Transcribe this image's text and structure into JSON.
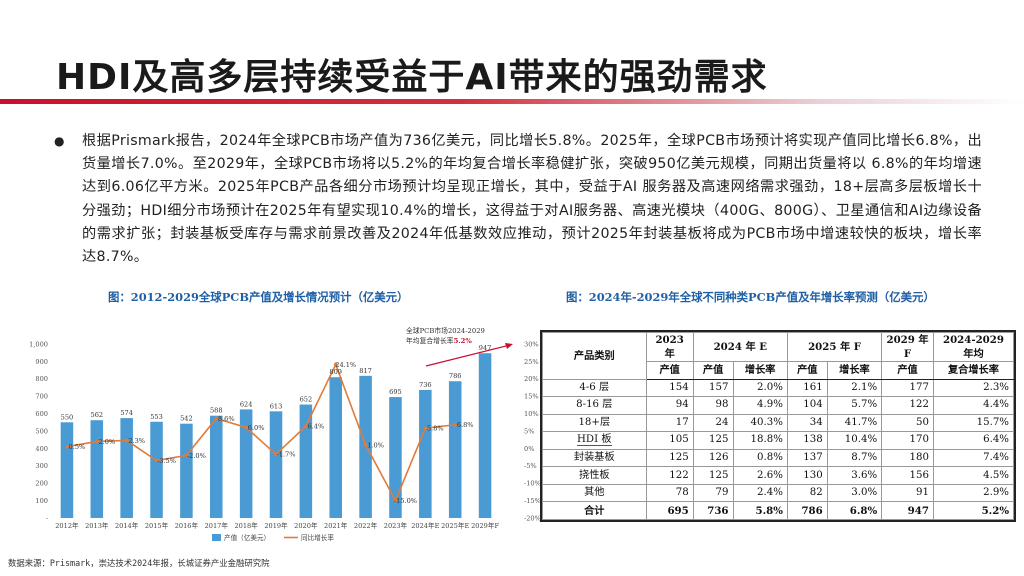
{
  "title": "HDI及高多层持续受益于AI带来的强劲需求",
  "bullet": "根据Prismark报告，2024年全球PCB市场产值为736亿美元，同比增长5.8%。2025年，全球PCB市场预计将实现产值同比增长6.8%，出货量增长7.0%。至2029年，全球PCB市场将以5.2%的年均复合增长率稳健扩张，突破950亿美元规模，同期出货量将以 6.8%的年均增速达到6.06亿平方米。2025年PCB产品各细分市场预计均呈现正增长，其中，受益于AI 服务器及高速网络需求强劲，18+层高多层板增长十分强劲；HDI细分市场预计在2025年有望实现10.4%的增长，这得益于对AI服务器、高速光模块（400G、800G）、卫星通信和AI边缘设备的需求扩张；封装基板受库存与需求前景改善及2024年低基数效应推动，预计2025年封装基板将成为PCB市场中增速较快的板块，增长率达8.7%。",
  "figure_left_caption": "图：2012-2029全球PCB产值及增长情况预计（亿美元）",
  "figure_right_caption": "图：2024年-2029年全球不同种类PCB产值及年增长率预测（亿美元）",
  "chart_data": {
    "type": "bar",
    "categories": [
      "2012年",
      "2013年",
      "2014年",
      "2015年",
      "2016年",
      "2017年",
      "2018年",
      "2019年",
      "2020年",
      "2021年",
      "2022年",
      "2023年",
      "2024年E",
      "2025年E",
      "2029年F"
    ],
    "series": [
      {
        "name": "产值（亿美元）",
        "type": "bar",
        "axis": "left",
        "values": [
          550,
          562,
          574,
          553,
          542,
          588,
          624,
          613,
          652,
          809,
          817,
          695,
          736,
          786,
          947
        ],
        "labels": [
          "550",
          "562",
          "574",
          "553",
          "542",
          "588",
          "624",
          "613",
          "652",
          "809",
          "817",
          "695",
          "736",
          "786",
          "947"
        ]
      },
      {
        "name": "同比增长率",
        "type": "line",
        "axis": "right",
        "values": [
          0.5,
          2.0,
          2.3,
          -3.5,
          -2.0,
          8.6,
          6.0,
          -1.7,
          6.4,
          24.1,
          1.0,
          -15.0,
          5.8,
          6.8,
          null
        ],
        "labels": [
          "0.5%",
          "2.0%",
          "2.3%",
          "-3.5%",
          "-2.0%",
          "8.6%",
          "6.0%",
          "-1.7%",
          "6.4%",
          "24.1%",
          "1.0%",
          "-15.0%",
          "5.8%",
          "6.8%",
          ""
        ]
      }
    ],
    "left_axis": {
      "range": [
        0,
        1000
      ],
      "ticks": [
        "-",
        "100",
        "200",
        "300",
        "400",
        "500",
        "600",
        "700",
        "800",
        "900",
        "1,000"
      ]
    },
    "right_axis": {
      "range": [
        -20,
        30
      ],
      "ticks": [
        "-20%",
        "-15%",
        "-10%",
        "-5%",
        "0%",
        "5%",
        "10%",
        "15%",
        "20%",
        "25%",
        "30%"
      ]
    },
    "annotation": {
      "line1": "全球PCB市场2024-2029",
      "line2_prefix": "年均复合增长率",
      "line2_value": "5.2%"
    },
    "legend": {
      "position": "bottom-center"
    },
    "colors": {
      "bar": "#4a9bd4",
      "line": "#e07b39",
      "annotation_arrow": "#c8102e"
    }
  },
  "table": {
    "header_row1": [
      "产品类别",
      "2023 年",
      "2024 年 E",
      "2025 年 F",
      "2029 年 F",
      "2024-2029 年均"
    ],
    "header_row2": [
      "产值",
      "产值",
      "增长率",
      "产值",
      "增长率",
      "产值",
      "复合增长率"
    ],
    "rows": [
      [
        "4-6 层",
        "154",
        "157",
        "2.0%",
        "161",
        "2.1%",
        "177",
        "2.3%"
      ],
      [
        "8-16 层",
        "94",
        "98",
        "4.9%",
        "104",
        "5.7%",
        "122",
        "4.4%"
      ],
      [
        "18+层",
        "17",
        "24",
        "40.3%",
        "34",
        "41.7%",
        "50",
        "15.7%"
      ],
      [
        "HDI 板",
        "105",
        "125",
        "18.8%",
        "138",
        "10.4%",
        "170",
        "6.4%"
      ],
      [
        "封装基板",
        "125",
        "126",
        "0.8%",
        "137",
        "8.7%",
        "180",
        "7.4%"
      ],
      [
        "挠性板",
        "122",
        "125",
        "2.6%",
        "130",
        "3.6%",
        "156",
        "4.5%"
      ],
      [
        "其他",
        "78",
        "79",
        "2.4%",
        "82",
        "3.0%",
        "91",
        "2.9%"
      ]
    ],
    "total": [
      "合计",
      "695",
      "736",
      "5.8%",
      "786",
      "6.8%",
      "947",
      "5.2%"
    ]
  },
  "source": "数据来源：Prismark，崇达技术2024年报，长城证券产业金融研究院"
}
